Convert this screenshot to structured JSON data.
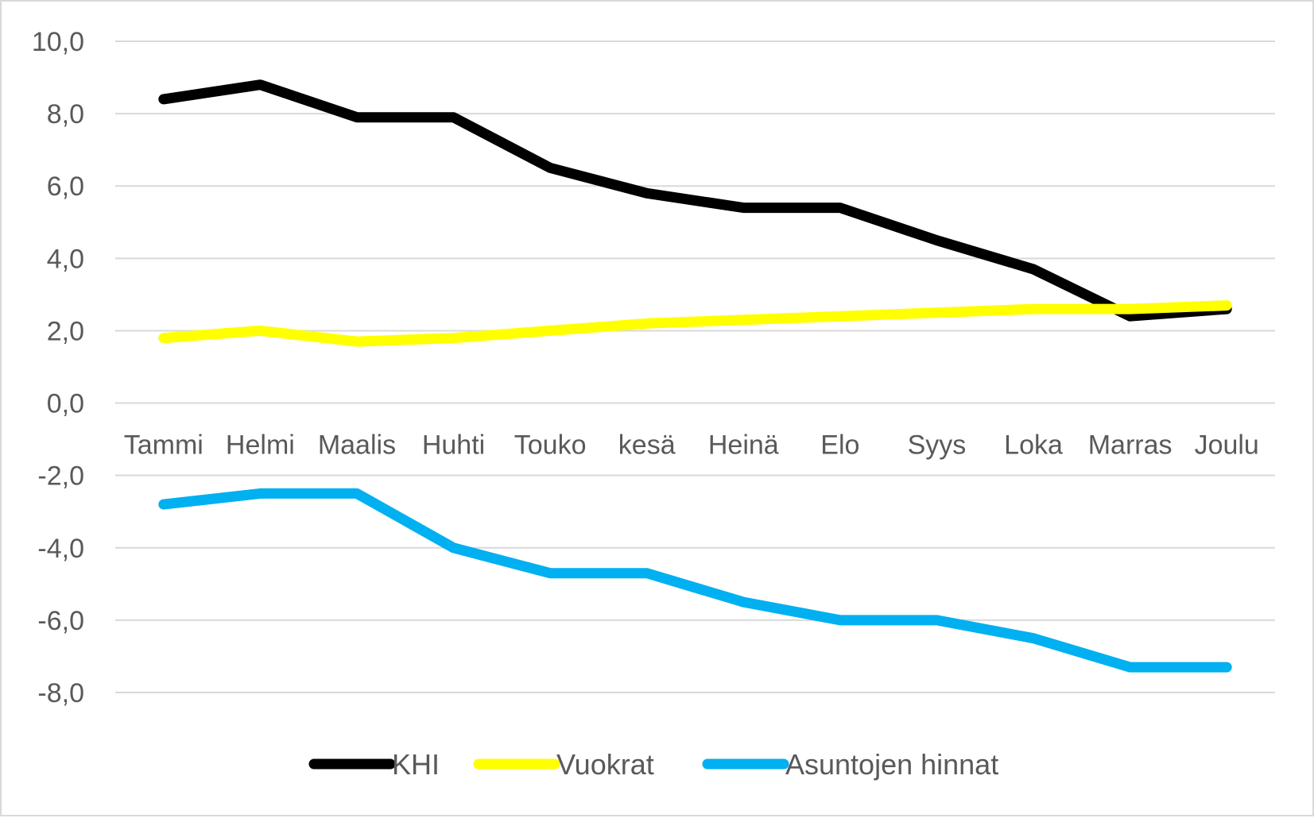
{
  "chart_data": {
    "type": "line",
    "title": "",
    "xlabel": "",
    "ylabel": "",
    "categories": [
      "Tammi",
      "Helmi",
      "Maalis",
      "Huhti",
      "Touko",
      "kesä",
      "Heinä",
      "Elo",
      "Syys",
      "Loka",
      "Marras",
      "Joulu"
    ],
    "ylim": [
      -8,
      10
    ],
    "yticks": [
      10,
      8,
      6,
      4,
      2,
      0,
      -2,
      -4,
      -6,
      -8
    ],
    "ytick_labels": [
      "10,0",
      "8,0",
      "6,0",
      "4,0",
      "2,0",
      "0,0",
      "-2,0",
      "-4,0",
      "-6,0",
      "-8,0"
    ],
    "grid": true,
    "legend_position": "bottom",
    "series": [
      {
        "name": "KHI",
        "color": "#000000",
        "values": [
          8.4,
          8.8,
          7.9,
          7.9,
          6.5,
          5.8,
          5.4,
          5.4,
          4.5,
          3.7,
          2.4,
          2.6
        ]
      },
      {
        "name": "Vuokrat",
        "color": "#ffff00",
        "values": [
          1.8,
          2.0,
          1.7,
          1.8,
          2.0,
          2.2,
          2.3,
          2.4,
          2.5,
          2.6,
          2.6,
          2.7
        ]
      },
      {
        "name": "Asuntojen hinnat",
        "color": "#00b0f0",
        "values": [
          -2.8,
          -2.5,
          -2.5,
          -4.0,
          -4.7,
          -4.7,
          -5.5,
          -6.0,
          -6.0,
          -6.5,
          -7.3,
          -7.3
        ]
      }
    ]
  }
}
